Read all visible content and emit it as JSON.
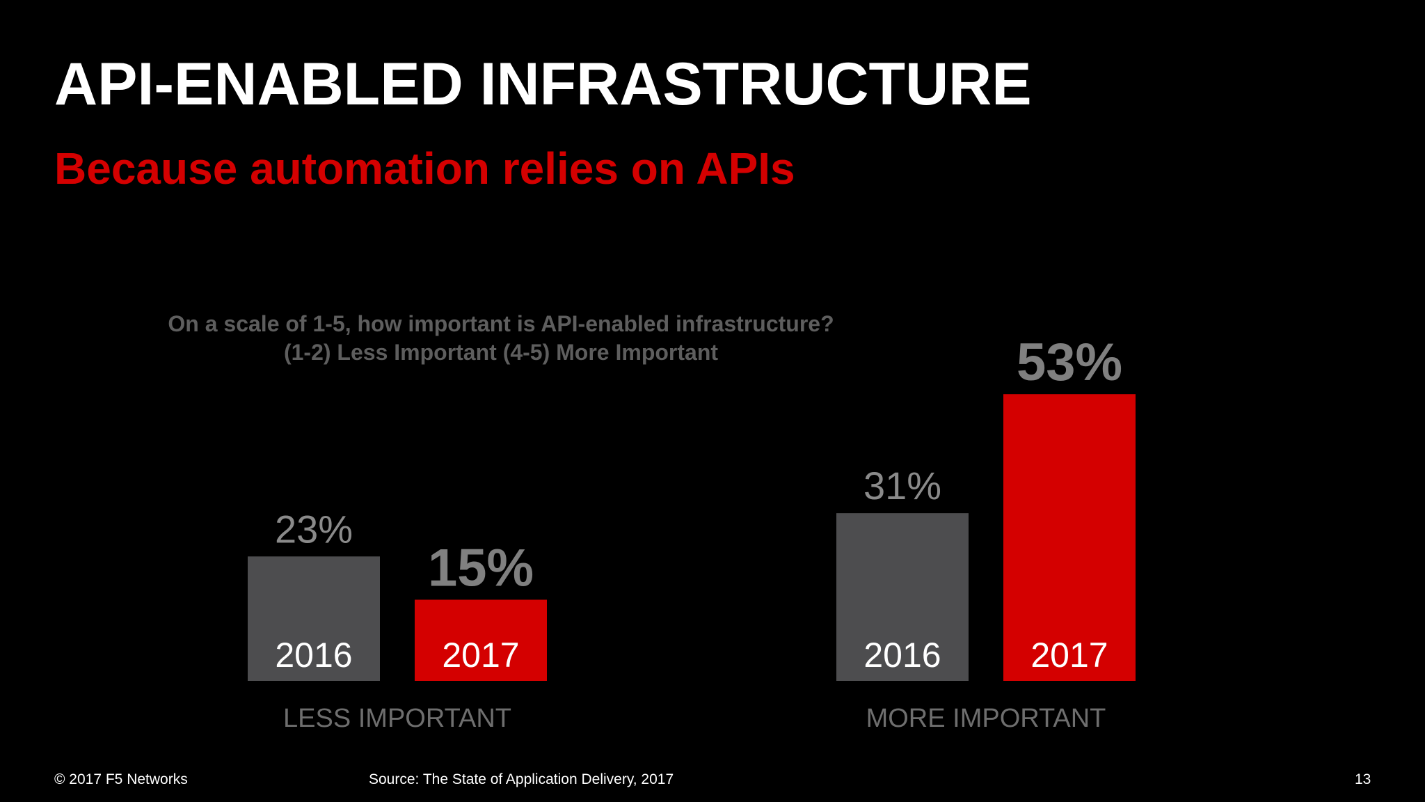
{
  "slide": {
    "title": "API-ENABLED INFRASTRUCTURE",
    "subtitle": "Because automation relies on APIs",
    "question_line1": "On a scale of 1-5, how important is API-enabled infrastructure?",
    "question_line2": "(1-2) Less Important (4-5) More Important",
    "footer_copyright": "© 2017 F5 Networks",
    "footer_source": "Source: The State of Application Delivery, 2017",
    "page_number": "13"
  },
  "colors": {
    "background": "#000000",
    "accent_red": "#d40000",
    "bar_gray": "#4d4d4f",
    "label_gray": "#8a8a8a",
    "text_white": "#ffffff"
  },
  "chart_data": {
    "type": "bar",
    "groups": [
      {
        "label": "LESS IMPORTANT",
        "bars": [
          {
            "category": "2016",
            "value": 23,
            "value_label": "23%",
            "emphasis": false,
            "color": "#4d4d4f"
          },
          {
            "category": "2017",
            "value": 15,
            "value_label": "15%",
            "emphasis": true,
            "color": "#d40000"
          }
        ]
      },
      {
        "label": "MORE IMPORTANT",
        "bars": [
          {
            "category": "2016",
            "value": 31,
            "value_label": "31%",
            "emphasis": false,
            "color": "#4d4d4f"
          },
          {
            "category": "2017",
            "value": 53,
            "value_label": "53%",
            "emphasis": true,
            "color": "#d40000"
          }
        ]
      }
    ],
    "title": "",
    "xlabel": "",
    "ylabel": "",
    "ylim": [
      0,
      53
    ],
    "grid": false,
    "legend": "none"
  }
}
